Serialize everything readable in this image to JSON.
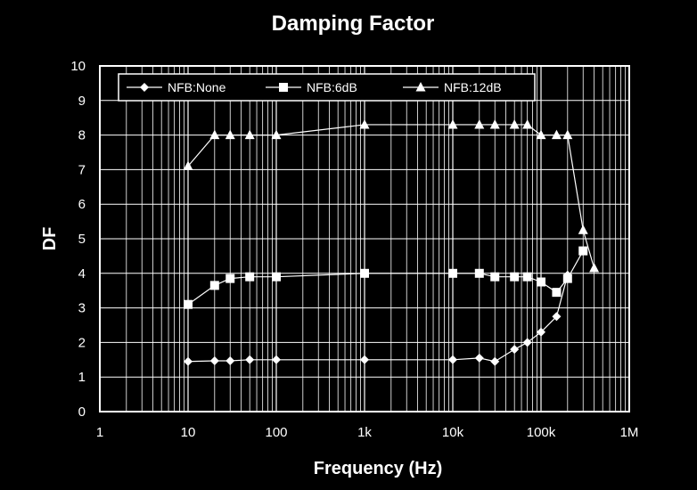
{
  "chart_data": {
    "type": "line",
    "title": "Damping Factor",
    "xlabel": "Frequency (Hz)",
    "ylabel": "DF",
    "xscale": "log",
    "xlim": [
      1,
      1000000
    ],
    "ylim": [
      0,
      10
    ],
    "grid": true,
    "legend_position": "top",
    "x_tick_labels": [
      "1",
      "10",
      "100",
      "1k",
      "10k",
      "100k",
      "1M"
    ],
    "y_tick_labels": [
      "0",
      "1",
      "2",
      "3",
      "4",
      "5",
      "6",
      "7",
      "8",
      "9",
      "10"
    ],
    "series": [
      {
        "name": "NFB:None",
        "marker": "diamond",
        "points": [
          [
            10,
            1.45
          ],
          [
            20,
            1.47
          ],
          [
            30,
            1.47
          ],
          [
            50,
            1.5
          ],
          [
            100,
            1.5
          ],
          [
            1000,
            1.5
          ],
          [
            10000,
            1.5
          ],
          [
            20000,
            1.55
          ],
          [
            30000,
            1.45
          ],
          [
            50000,
            1.8
          ],
          [
            70000,
            2.0
          ],
          [
            100000,
            2.3
          ],
          [
            150000,
            2.75
          ],
          [
            200000,
            3.95
          ]
        ]
      },
      {
        "name": "NFB:6dB",
        "marker": "square",
        "points": [
          [
            10,
            3.1
          ],
          [
            20,
            3.65
          ],
          [
            30,
            3.85
          ],
          [
            50,
            3.9
          ],
          [
            100,
            3.9
          ],
          [
            1000,
            4.0
          ],
          [
            10000,
            4.0
          ],
          [
            20000,
            4.0
          ],
          [
            30000,
            3.9
          ],
          [
            50000,
            3.9
          ],
          [
            70000,
            3.9
          ],
          [
            100000,
            3.75
          ],
          [
            150000,
            3.45
          ],
          [
            200000,
            3.85
          ],
          [
            300000,
            4.65
          ]
        ]
      },
      {
        "name": "NFB:12dB",
        "marker": "triangle",
        "points": [
          [
            10,
            7.1
          ],
          [
            20,
            8.0
          ],
          [
            30,
            8.0
          ],
          [
            50,
            8.0
          ],
          [
            100,
            8.0
          ],
          [
            1000,
            8.3
          ],
          [
            10000,
            8.3
          ],
          [
            20000,
            8.3
          ],
          [
            30000,
            8.3
          ],
          [
            50000,
            8.3
          ],
          [
            70000,
            8.3
          ],
          [
            100000,
            8.0
          ],
          [
            150000,
            8.0
          ],
          [
            200000,
            8.0
          ],
          [
            300000,
            5.25
          ],
          [
            400000,
            4.15
          ]
        ]
      }
    ]
  }
}
